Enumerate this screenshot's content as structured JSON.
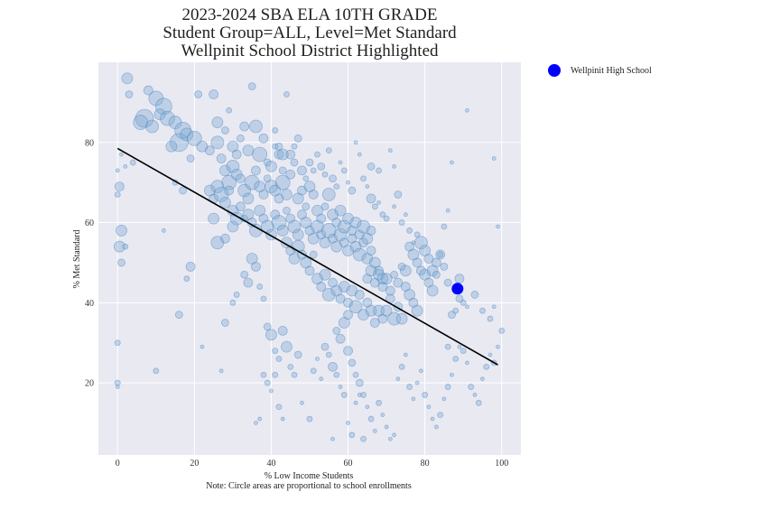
{
  "chart_data": {
    "type": "scatter",
    "title_lines": [
      "2023-2024 SBA ELA 10TH GRADE",
      "Student Group=ALL, Level=Met Standard",
      "Wellpinit School District Highlighted"
    ],
    "xlabel": "% Low Income Students",
    "ylabel": "% Met Standard",
    "note": "Note: Circle areas are proportional to school enrollments",
    "xlim": [
      -5,
      105
    ],
    "ylim": [
      2,
      100
    ],
    "xticks": [
      0,
      20,
      40,
      60,
      80,
      100
    ],
    "yticks": [
      20,
      40,
      60,
      80
    ],
    "grid": true,
    "colors": {
      "plot_bg": "#e9e9f2",
      "grid": "#ffffff",
      "point_fill": "#7ba7d1",
      "point_stroke": "#3d7fbd",
      "highlight": "#0000ff",
      "trend": "#000000"
    },
    "trendline": {
      "x": [
        0,
        99
      ],
      "y": [
        78.5,
        24.5
      ]
    },
    "highlight": {
      "name": "Wellpinit High School",
      "x": 88.5,
      "y": 43.5,
      "legend_position": "outside-top-right"
    },
    "points": [
      [
        2.5,
        96,
        6
      ],
      [
        3,
        92,
        4
      ],
      [
        8,
        93,
        5
      ],
      [
        10,
        91,
        8
      ],
      [
        12,
        89,
        9
      ],
      [
        7,
        86,
        10
      ],
      [
        6,
        85,
        8
      ],
      [
        9,
        84,
        7
      ],
      [
        11,
        87,
        6
      ],
      [
        13,
        86,
        8
      ],
      [
        15,
        85,
        7
      ],
      [
        17,
        83,
        9
      ],
      [
        16,
        80,
        10
      ],
      [
        18,
        82,
        7
      ],
      [
        14,
        79,
        6
      ],
      [
        20,
        81,
        8
      ],
      [
        22,
        79,
        6
      ],
      [
        24,
        78,
        5
      ],
      [
        19,
        76,
        4
      ],
      [
        21,
        92,
        4
      ],
      [
        25,
        92,
        5
      ],
      [
        26,
        85,
        6
      ],
      [
        26,
        80,
        7
      ],
      [
        28,
        83,
        4
      ],
      [
        29,
        88,
        3
      ],
      [
        30,
        79,
        6
      ],
      [
        31,
        77,
        5
      ],
      [
        32,
        81,
        4
      ],
      [
        33,
        84,
        5
      ],
      [
        34,
        78,
        6
      ],
      [
        35,
        94,
        4
      ],
      [
        36,
        84,
        7
      ],
      [
        37,
        77,
        8
      ],
      [
        38,
        81,
        5
      ],
      [
        39,
        75,
        4
      ],
      [
        40,
        74,
        6
      ],
      [
        41,
        79,
        3
      ],
      [
        42,
        77,
        5
      ],
      [
        43,
        73,
        4
      ],
      [
        44,
        92,
        3
      ],
      [
        27,
        76,
        5
      ],
      [
        28,
        73,
        6
      ],
      [
        29,
        70,
        8
      ],
      [
        30,
        74,
        7
      ],
      [
        31,
        72,
        6
      ],
      [
        32,
        71,
        5
      ],
      [
        33,
        68,
        7
      ],
      [
        34,
        66,
        6
      ],
      [
        35,
        70,
        8
      ],
      [
        36,
        73,
        5
      ],
      [
        37,
        69,
        6
      ],
      [
        38,
        67,
        5
      ],
      [
        39,
        71,
        4
      ],
      [
        40,
        69,
        7
      ],
      [
        41,
        68,
        6
      ],
      [
        42,
        66,
        5
      ],
      [
        43,
        70,
        8
      ],
      [
        44,
        67,
        6
      ],
      [
        45,
        72,
        5
      ],
      [
        46,
        75,
        4
      ],
      [
        24,
        68,
        6
      ],
      [
        25,
        66,
        5
      ],
      [
        26,
        69,
        7
      ],
      [
        27,
        67,
        8
      ],
      [
        28,
        65,
        6
      ],
      [
        29,
        68,
        5
      ],
      [
        30,
        63,
        6
      ],
      [
        31,
        61,
        7
      ],
      [
        32,
        64,
        5
      ],
      [
        33,
        61,
        4
      ],
      [
        25,
        61,
        6
      ],
      [
        26,
        55,
        7
      ],
      [
        28,
        56,
        5
      ],
      [
        30,
        59,
        6
      ],
      [
        34,
        62,
        6
      ],
      [
        35,
        60,
        5
      ],
      [
        36,
        58,
        7
      ],
      [
        37,
        63,
        6
      ],
      [
        38,
        61,
        5
      ],
      [
        39,
        59,
        7
      ],
      [
        40,
        57,
        6
      ],
      [
        41,
        62,
        5
      ],
      [
        42,
        60,
        8
      ],
      [
        43,
        58,
        6
      ],
      [
        44,
        63,
        4
      ],
      [
        45,
        61,
        5
      ],
      [
        46,
        59,
        7
      ],
      [
        47,
        57,
        6
      ],
      [
        48,
        62,
        5
      ],
      [
        49,
        60,
        6
      ],
      [
        50,
        58,
        5
      ],
      [
        51,
        56,
        6
      ],
      [
        52,
        59,
        7
      ],
      [
        53,
        57,
        5
      ],
      [
        54,
        55,
        6
      ],
      [
        55,
        58,
        8
      ],
      [
        56,
        56,
        5
      ],
      [
        57,
        54,
        6
      ],
      [
        58,
        57,
        7
      ],
      [
        59,
        55,
        5
      ],
      [
        60,
        53,
        6
      ],
      [
        61,
        56,
        5
      ],
      [
        62,
        54,
        6
      ],
      [
        63,
        52,
        7
      ],
      [
        64,
        55,
        5
      ],
      [
        65,
        51,
        6
      ],
      [
        66,
        53,
        5
      ],
      [
        67,
        50,
        6
      ],
      [
        68,
        48,
        5
      ],
      [
        69,
        46,
        6
      ],
      [
        47,
        66,
        6
      ],
      [
        48,
        68,
        5
      ],
      [
        49,
        64,
        4
      ],
      [
        50,
        69,
        6
      ],
      [
        51,
        67,
        5
      ],
      [
        52,
        63,
        6
      ],
      [
        53,
        61,
        5
      ],
      [
        54,
        64,
        4
      ],
      [
        55,
        67,
        7
      ],
      [
        56,
        62,
        6
      ],
      [
        57,
        60,
        5
      ],
      [
        58,
        63,
        6
      ],
      [
        59,
        59,
        7
      ],
      [
        60,
        61,
        6
      ],
      [
        61,
        58,
        5
      ],
      [
        62,
        60,
        6
      ],
      [
        63,
        57,
        5
      ],
      [
        64,
        59,
        7
      ],
      [
        65,
        56,
        6
      ],
      [
        66,
        58,
        5
      ],
      [
        44,
        55,
        6
      ],
      [
        45,
        53,
        5
      ],
      [
        46,
        51,
        6
      ],
      [
        47,
        54,
        7
      ],
      [
        48,
        52,
        5
      ],
      [
        49,
        50,
        6
      ],
      [
        50,
        48,
        5
      ],
      [
        51,
        52,
        4
      ],
      [
        52,
        46,
        6
      ],
      [
        53,
        44,
        5
      ],
      [
        54,
        47,
        6
      ],
      [
        55,
        42,
        7
      ],
      [
        56,
        45,
        5
      ],
      [
        57,
        43,
        6
      ],
      [
        58,
        41,
        5
      ],
      [
        59,
        44,
        6
      ],
      [
        60,
        40,
        5
      ],
      [
        61,
        43,
        6
      ],
      [
        62,
        39,
        7
      ],
      [
        63,
        42,
        5
      ],
      [
        64,
        37,
        6
      ],
      [
        65,
        40,
        5
      ],
      [
        66,
        38,
        6
      ],
      [
        67,
        35,
        5
      ],
      [
        68,
        38,
        6
      ],
      [
        69,
        36,
        5
      ],
      [
        70,
        38,
        6
      ],
      [
        71,
        41,
        5
      ],
      [
        72,
        36,
        7
      ],
      [
        73,
        39,
        5
      ],
      [
        74,
        36,
        6
      ],
      [
        75,
        44,
        5
      ],
      [
        76,
        42,
        6
      ],
      [
        77,
        40,
        5
      ],
      [
        78,
        38,
        6
      ],
      [
        79,
        48,
        5
      ],
      [
        80,
        47,
        6
      ],
      [
        81,
        45,
        5
      ],
      [
        82,
        43,
        6
      ],
      [
        83,
        50,
        5
      ],
      [
        75,
        48,
        6
      ],
      [
        76,
        54,
        5
      ],
      [
        77,
        52,
        6
      ],
      [
        78,
        50,
        5
      ],
      [
        79,
        55,
        7
      ],
      [
        80,
        53,
        6
      ],
      [
        81,
        51,
        5
      ],
      [
        82,
        48,
        6
      ],
      [
        84,
        52,
        5
      ],
      [
        86,
        45,
        4
      ],
      [
        65,
        46,
        5
      ],
      [
        66,
        48,
        6
      ],
      [
        67,
        45,
        5
      ],
      [
        68,
        47,
        6
      ],
      [
        69,
        44,
        5
      ],
      [
        70,
        46,
        6
      ],
      [
        71,
        43,
        5
      ],
      [
        72,
        47,
        4
      ],
      [
        73,
        45,
        5
      ],
      [
        74,
        49,
        4
      ],
      [
        4,
        75,
        3
      ],
      [
        1,
        77,
        2
      ],
      [
        2,
        74,
        2
      ],
      [
        0,
        73,
        2
      ],
      [
        0.5,
        69,
        5
      ],
      [
        0,
        67,
        3
      ],
      [
        1,
        58,
        6
      ],
      [
        0.5,
        54,
        6
      ],
      [
        1,
        50,
        4
      ],
      [
        2,
        54,
        3
      ],
      [
        0,
        30,
        3
      ],
      [
        0,
        20,
        3
      ],
      [
        0,
        19,
        2
      ],
      [
        10,
        23,
        3
      ],
      [
        12,
        58,
        2
      ],
      [
        16,
        37,
        4
      ],
      [
        18,
        46,
        3
      ],
      [
        19,
        49,
        5
      ],
      [
        17,
        68,
        4
      ],
      [
        15,
        70,
        3
      ],
      [
        22,
        29,
        2
      ],
      [
        27,
        23,
        2
      ],
      [
        28,
        35,
        4
      ],
      [
        30,
        40,
        3
      ],
      [
        31,
        42,
        3
      ],
      [
        33,
        47,
        4
      ],
      [
        34,
        45,
        5
      ],
      [
        35,
        51,
        6
      ],
      [
        36,
        49,
        5
      ],
      [
        37,
        44,
        3
      ],
      [
        38,
        41,
        3
      ],
      [
        39,
        34,
        4
      ],
      [
        40,
        32,
        6
      ],
      [
        41,
        28,
        3
      ],
      [
        42,
        26,
        3
      ],
      [
        43,
        33,
        5
      ],
      [
        44,
        29,
        6
      ],
      [
        45,
        24,
        3
      ],
      [
        46,
        22,
        3
      ],
      [
        47,
        27,
        4
      ],
      [
        38,
        22,
        3
      ],
      [
        39,
        20,
        3
      ],
      [
        40,
        18,
        2
      ],
      [
        41,
        22,
        3
      ],
      [
        42,
        14,
        3
      ],
      [
        43,
        11,
        2
      ],
      [
        36,
        10,
        2
      ],
      [
        37,
        11,
        2
      ],
      [
        48,
        15,
        2
      ],
      [
        50,
        11,
        3
      ],
      [
        51,
        23,
        3
      ],
      [
        52,
        26,
        2
      ],
      [
        53,
        21,
        2
      ],
      [
        54,
        29,
        4
      ],
      [
        55,
        27,
        3
      ],
      [
        56,
        24,
        5
      ],
      [
        57,
        22,
        3
      ],
      [
        58,
        19,
        2
      ],
      [
        59,
        17,
        3
      ],
      [
        60,
        28,
        5
      ],
      [
        61,
        25,
        4
      ],
      [
        62,
        22,
        3
      ],
      [
        63,
        20,
        4
      ],
      [
        64,
        17,
        3
      ],
      [
        65,
        14,
        2
      ],
      [
        66,
        11,
        3
      ],
      [
        67,
        8,
        2
      ],
      [
        68,
        15,
        3
      ],
      [
        69,
        12,
        2
      ],
      [
        70,
        9,
        2
      ],
      [
        71,
        6,
        2
      ],
      [
        72,
        7,
        2
      ],
      [
        73,
        21,
        2
      ],
      [
        74,
        24,
        3
      ],
      [
        75,
        27,
        2
      ],
      [
        76,
        19,
        3
      ],
      [
        77,
        16,
        2
      ],
      [
        78,
        20,
        2
      ],
      [
        79,
        23,
        2
      ],
      [
        80,
        17,
        3
      ],
      [
        81,
        14,
        2
      ],
      [
        82,
        11,
        2
      ],
      [
        83,
        9,
        2
      ],
      [
        84,
        12,
        3
      ],
      [
        85,
        16,
        2
      ],
      [
        86,
        19,
        3
      ],
      [
        87,
        22,
        2
      ],
      [
        88,
        26,
        3
      ],
      [
        89,
        29,
        2
      ],
      [
        90,
        28,
        3
      ],
      [
        91,
        25,
        2
      ],
      [
        92,
        19,
        3
      ],
      [
        93,
        17,
        2
      ],
      [
        94,
        15,
        3
      ],
      [
        95,
        21,
        2
      ],
      [
        96,
        24,
        3
      ],
      [
        97,
        27,
        2
      ],
      [
        98,
        25,
        3
      ],
      [
        99,
        29,
        2
      ],
      [
        100,
        33,
        3
      ],
      [
        64,
        6,
        3
      ],
      [
        60,
        10,
        2
      ],
      [
        56,
        6,
        2
      ],
      [
        61,
        7,
        3
      ],
      [
        62,
        15,
        2
      ],
      [
        63,
        17,
        2
      ],
      [
        57,
        33,
        4
      ],
      [
        58,
        31,
        5
      ],
      [
        59,
        35,
        6
      ],
      [
        60,
        37,
        5
      ],
      [
        86,
        29,
        3
      ],
      [
        87,
        37,
        4
      ],
      [
        88,
        38,
        3
      ],
      [
        89,
        41,
        4
      ],
      [
        90,
        40,
        3
      ],
      [
        91,
        39,
        2
      ],
      [
        93,
        42,
        4
      ],
      [
        95,
        38,
        3
      ],
      [
        97,
        36,
        3
      ],
      [
        98,
        39,
        2
      ],
      [
        85,
        59,
        3
      ],
      [
        86,
        63,
        2
      ],
      [
        87,
        75,
        2
      ],
      [
        91,
        88,
        2
      ],
      [
        98,
        76,
        2
      ],
      [
        99,
        59,
        2
      ],
      [
        89,
        46,
        5
      ],
      [
        83,
        47,
        4
      ],
      [
        84,
        52,
        3
      ],
      [
        85,
        49,
        4
      ],
      [
        70,
        61,
        3
      ],
      [
        72,
        64,
        2
      ],
      [
        73,
        67,
        4
      ],
      [
        74,
        60,
        3
      ],
      [
        75,
        62,
        2
      ],
      [
        76,
        58,
        3
      ],
      [
        77,
        55,
        2
      ],
      [
        78,
        57,
        3
      ],
      [
        68,
        65,
        2
      ],
      [
        69,
        62,
        3
      ],
      [
        71,
        78,
        2
      ],
      [
        72,
        74,
        2
      ],
      [
        68,
        73,
        3
      ],
      [
        66,
        74,
        4
      ],
      [
        64,
        71,
        3
      ],
      [
        65,
        69,
        2
      ],
      [
        66,
        66,
        5
      ],
      [
        67,
        64,
        3
      ],
      [
        62,
        80,
        2
      ],
      [
        63,
        77,
        2
      ],
      [
        52,
        77,
        3
      ],
      [
        53,
        74,
        4
      ],
      [
        54,
        72,
        3
      ],
      [
        55,
        78,
        3
      ],
      [
        56,
        71,
        4
      ],
      [
        57,
        69,
        3
      ],
      [
        58,
        75,
        2
      ],
      [
        59,
        73,
        3
      ],
      [
        60,
        70,
        2
      ],
      [
        61,
        68,
        4
      ],
      [
        45,
        77,
        5
      ],
      [
        46,
        79,
        3
      ],
      [
        47,
        81,
        4
      ],
      [
        48,
        73,
        5
      ],
      [
        49,
        71,
        3
      ],
      [
        50,
        75,
        4
      ],
      [
        51,
        73,
        3
      ],
      [
        41,
        83,
        3
      ],
      [
        42,
        79,
        4
      ],
      [
        43,
        77,
        6
      ]
    ]
  }
}
